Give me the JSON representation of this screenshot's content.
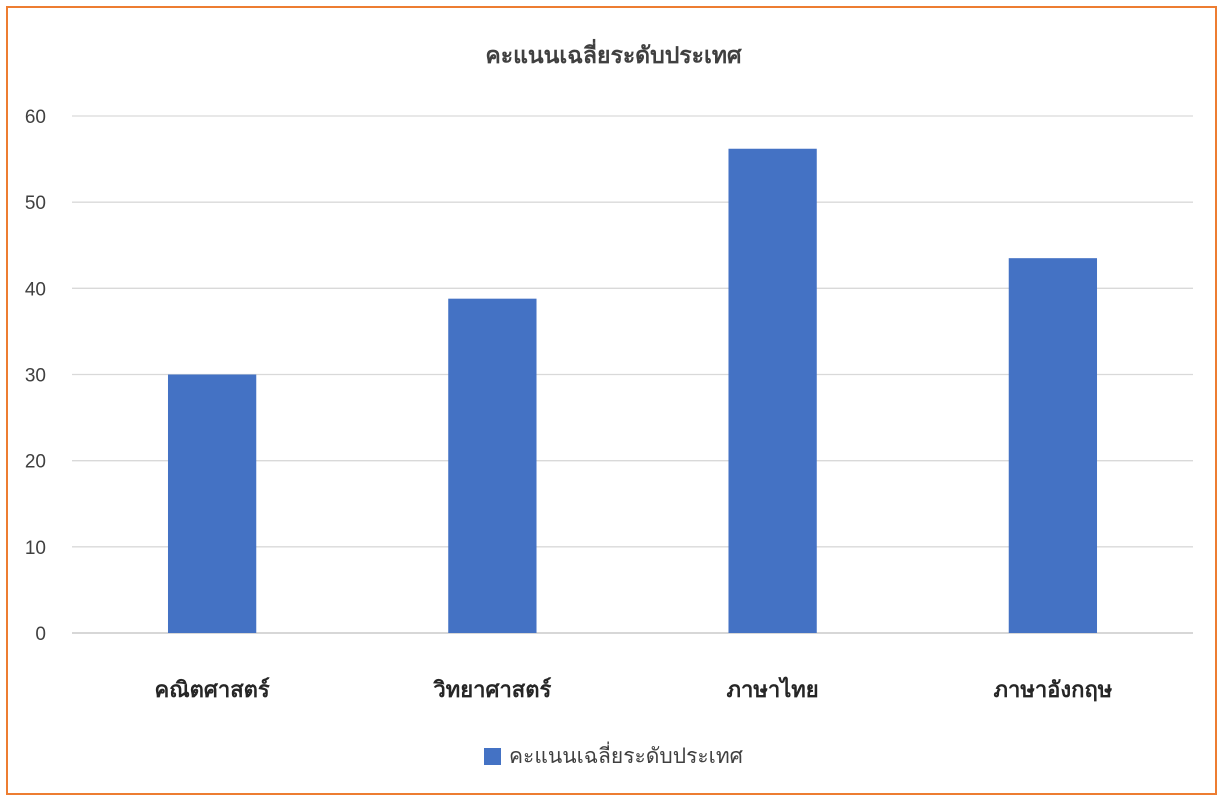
{
  "chart_data": {
    "type": "bar",
    "title": "คะแนนเฉลี่ยระดับประเทศ",
    "categories": [
      "คณิตศาสตร์",
      "วิทยาศาสตร์",
      "ภาษาไทย",
      "ภาษาอังกฤษ"
    ],
    "series": [
      {
        "name": "คะแนนเฉลี่ยระดับประเทศ",
        "values": [
          30.0,
          38.8,
          56.2,
          43.5
        ],
        "color": "#4472C4"
      }
    ],
    "ylim": [
      0,
      60
    ],
    "yticks": [
      0,
      10,
      20,
      30,
      40,
      50,
      60
    ],
    "xlabel": "",
    "ylabel": "",
    "grid": true,
    "legend_position": "bottom",
    "frame_color": "#ED7D31"
  }
}
